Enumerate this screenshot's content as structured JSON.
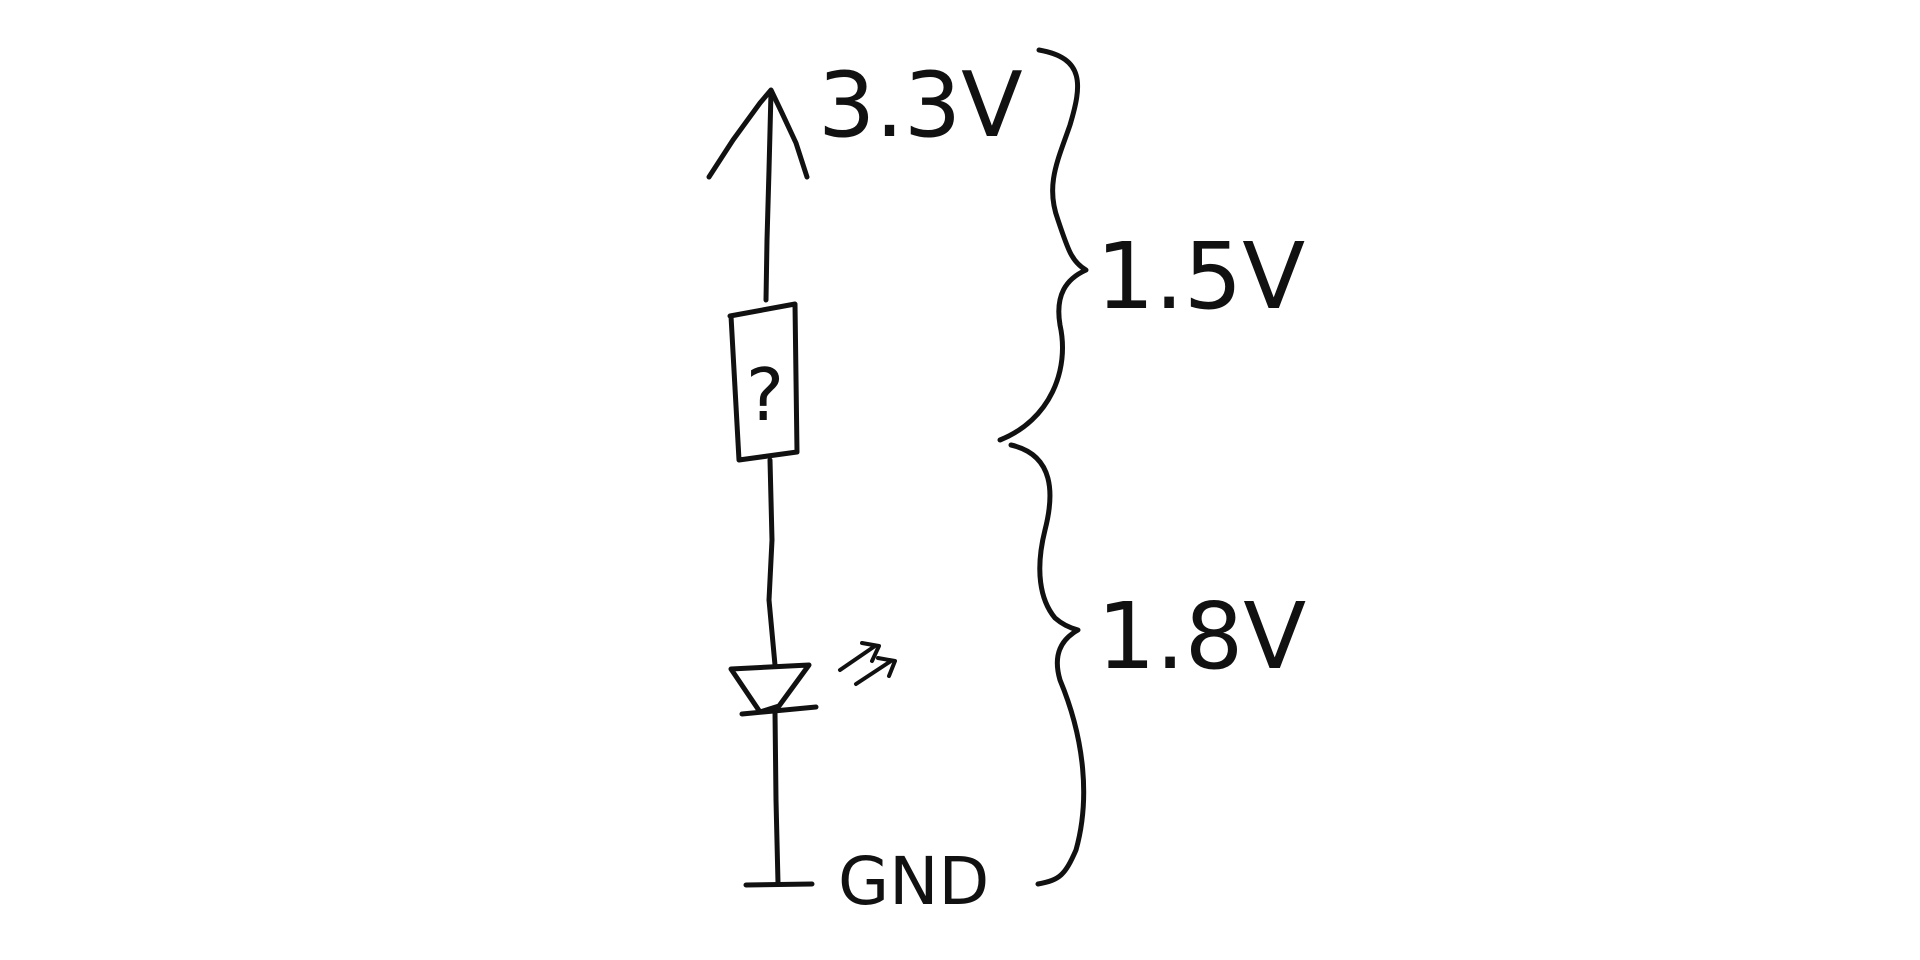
{
  "diagram": {
    "supply_label": "3.3V",
    "ground_label": "GND",
    "unknown_component_label": "?",
    "upper_drop_label": "1.5V",
    "lower_drop_label": "1.8V"
  },
  "colors": {
    "background": "#ffffff",
    "ink": "#111111"
  }
}
